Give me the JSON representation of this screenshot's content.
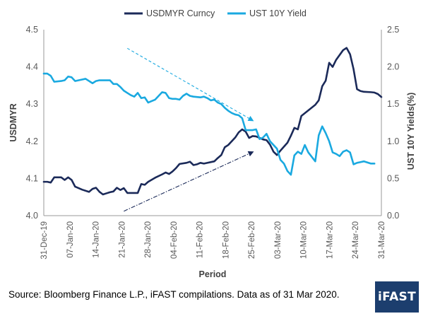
{
  "source_note": "Source: Bloomberg Finance L.P., iFAST compilations. Data as of 31 Mar 2020.",
  "logo_text": "iFAST",
  "colors": {
    "usdmyr": "#1b2a59",
    "ust": "#1aa9e0",
    "axis": "#999999",
    "logo_bg": "#1c3e6e"
  },
  "chart_data": {
    "type": "line",
    "xlabel": "Period",
    "ylabel_left": "USDMYR",
    "ylabel_right": "UST 10Y Yields(%)",
    "ylim_left": [
      4.0,
      4.5
    ],
    "ylim_right": [
      0.0,
      2.5
    ],
    "yticks_left": [
      "4.0",
      "4.1",
      "4.2",
      "4.3",
      "4.4",
      "4.5"
    ],
    "yticks_right": [
      "0.0",
      "0.5",
      "1.0",
      "1.5",
      "2.0",
      "2.5"
    ],
    "legend_position": "top",
    "grid": false,
    "x_ticks": [
      "31-Dec-19",
      "07-Jan-20",
      "14-Jan-20",
      "21-Jan-20",
      "28-Jan-20",
      "04-Feb-20",
      "11-Feb-20",
      "18-Feb-20",
      "25-Feb-20",
      "03-Mar-20",
      "10-Mar-20",
      "17-Mar-20",
      "24-Mar-20",
      "31-Mar-20"
    ],
    "series": [
      {
        "name": "USDMYR Curncy",
        "axis": "left",
        "points": [
          [
            0,
            4.091
          ],
          [
            1,
            4.091
          ],
          [
            2,
            4.089
          ],
          [
            3,
            4.103
          ],
          [
            5,
            4.103
          ],
          [
            6,
            4.096
          ],
          [
            7,
            4.103
          ],
          [
            8,
            4.096
          ],
          [
            9,
            4.078
          ],
          [
            11,
            4.07
          ],
          [
            13,
            4.064
          ],
          [
            14,
            4.072
          ],
          [
            15,
            4.075
          ],
          [
            16,
            4.064
          ],
          [
            17,
            4.057
          ],
          [
            18,
            4.06
          ],
          [
            19,
            4.063
          ],
          [
            20,
            4.065
          ],
          [
            21,
            4.075
          ],
          [
            22,
            4.069
          ],
          [
            23,
            4.074
          ],
          [
            24,
            4.061
          ],
          [
            27,
            4.061
          ],
          [
            28,
            4.085
          ],
          [
            29,
            4.083
          ],
          [
            30,
            4.091
          ],
          [
            32,
            4.102
          ],
          [
            34,
            4.111
          ],
          [
            35,
            4.116
          ],
          [
            36,
            4.112
          ],
          [
            37,
            4.119
          ],
          [
            38,
            4.128
          ],
          [
            39,
            4.139
          ],
          [
            41,
            4.142
          ],
          [
            42,
            4.145
          ],
          [
            43,
            4.136
          ],
          [
            44,
            4.138
          ],
          [
            45,
            4.142
          ],
          [
            46,
            4.14
          ],
          [
            49,
            4.146
          ],
          [
            50,
            4.155
          ],
          [
            51,
            4.163
          ],
          [
            52,
            4.184
          ],
          [
            53,
            4.19
          ],
          [
            55,
            4.21
          ],
          [
            56,
            4.224
          ],
          [
            57,
            4.232
          ],
          [
            58,
            4.226
          ],
          [
            59,
            4.209
          ],
          [
            60,
            4.214
          ],
          [
            61,
            4.213
          ],
          [
            63,
            4.205
          ],
          [
            64,
            4.203
          ],
          [
            65,
            4.191
          ],
          [
            66,
            4.172
          ],
          [
            67,
            4.163
          ],
          [
            68,
            4.175
          ],
          [
            70,
            4.196
          ],
          [
            71,
            4.215
          ],
          [
            72,
            4.236
          ],
          [
            73,
            4.232
          ],
          [
            74,
            4.268
          ],
          [
            76,
            4.283
          ],
          [
            78,
            4.298
          ],
          [
            79,
            4.31
          ],
          [
            80,
            4.348
          ],
          [
            81,
            4.363
          ],
          [
            82,
            4.411
          ],
          [
            83,
            4.4
          ],
          [
            84,
            4.419
          ],
          [
            86,
            4.445
          ],
          [
            87,
            4.451
          ],
          [
            88,
            4.434
          ],
          [
            89,
            4.394
          ],
          [
            90,
            4.34
          ],
          [
            91,
            4.335
          ],
          [
            92,
            4.333
          ],
          [
            94,
            4.332
          ],
          [
            95,
            4.331
          ],
          [
            96,
            4.327
          ],
          [
            97,
            4.319
          ]
        ]
      },
      {
        "name": "UST 10Y Yield",
        "axis": "right",
        "points": [
          [
            0,
            1.91
          ],
          [
            1,
            1.91
          ],
          [
            2,
            1.88
          ],
          [
            3,
            1.8
          ],
          [
            5,
            1.81
          ],
          [
            6,
            1.82
          ],
          [
            7,
            1.87
          ],
          [
            8,
            1.86
          ],
          [
            9,
            1.81
          ],
          [
            11,
            1.83
          ],
          [
            12,
            1.84
          ],
          [
            13,
            1.81
          ],
          [
            14,
            1.78
          ],
          [
            15,
            1.81
          ],
          [
            16,
            1.82
          ],
          [
            19,
            1.82
          ],
          [
            20,
            1.77
          ],
          [
            21,
            1.77
          ],
          [
            22,
            1.73
          ],
          [
            23,
            1.68
          ],
          [
            24,
            1.65
          ],
          [
            25,
            1.62
          ],
          [
            26,
            1.6
          ],
          [
            27,
            1.65
          ],
          [
            28,
            1.58
          ],
          [
            29,
            1.59
          ],
          [
            30,
            1.52
          ],
          [
            31,
            1.54
          ],
          [
            32,
            1.56
          ],
          [
            34,
            1.66
          ],
          [
            35,
            1.65
          ],
          [
            36,
            1.58
          ],
          [
            37,
            1.57
          ],
          [
            38,
            1.57
          ],
          [
            39,
            1.56
          ],
          [
            40,
            1.61
          ],
          [
            41,
            1.64
          ],
          [
            42,
            1.61
          ],
          [
            43,
            1.6
          ],
          [
            45,
            1.59
          ],
          [
            46,
            1.6
          ],
          [
            47,
            1.58
          ],
          [
            48,
            1.55
          ],
          [
            49,
            1.56
          ],
          [
            50,
            1.52
          ],
          [
            51,
            1.5
          ],
          [
            52,
            1.45
          ],
          [
            53,
            1.41
          ],
          [
            54,
            1.38
          ],
          [
            55,
            1.36
          ],
          [
            56,
            1.35
          ],
          [
            57,
            1.31
          ],
          [
            58,
            1.15
          ],
          [
            59,
            1.15
          ],
          [
            60,
            1.15
          ],
          [
            61,
            1.16
          ],
          [
            62,
            1.03
          ],
          [
            63,
            1.05
          ],
          [
            64,
            1.1
          ],
          [
            65,
            1.0
          ],
          [
            66,
            0.95
          ],
          [
            67,
            0.9
          ],
          [
            68,
            0.75
          ],
          [
            69,
            0.7
          ],
          [
            70,
            0.6
          ],
          [
            71,
            0.55
          ],
          [
            72,
            0.81
          ],
          [
            73,
            0.86
          ],
          [
            74,
            0.83
          ],
          [
            75,
            0.95
          ],
          [
            76,
            0.85
          ],
          [
            78,
            0.73
          ],
          [
            79,
            1.08
          ],
          [
            80,
            1.2
          ],
          [
            81,
            1.11
          ],
          [
            82,
            1.0
          ],
          [
            83,
            0.85
          ],
          [
            84,
            0.83
          ],
          [
            85,
            0.8
          ],
          [
            86,
            0.86
          ],
          [
            87,
            0.88
          ],
          [
            88,
            0.85
          ],
          [
            89,
            0.69
          ],
          [
            90,
            0.71
          ],
          [
            92,
            0.73
          ],
          [
            94,
            0.7
          ],
          [
            95,
            0.7
          ]
        ]
      }
    ],
    "annotations": [
      {
        "type": "dashed-arrow",
        "series": "UST 10Y Yield",
        "direction": "down",
        "from": [
          24,
          2.25
        ],
        "to": [
          60,
          1.28
        ]
      },
      {
        "type": "dashed-arrow",
        "series": "USDMYR Curncy",
        "direction": "up",
        "from": [
          23,
          4.012
        ],
        "to": [
          60,
          4.171
        ]
      }
    ]
  }
}
